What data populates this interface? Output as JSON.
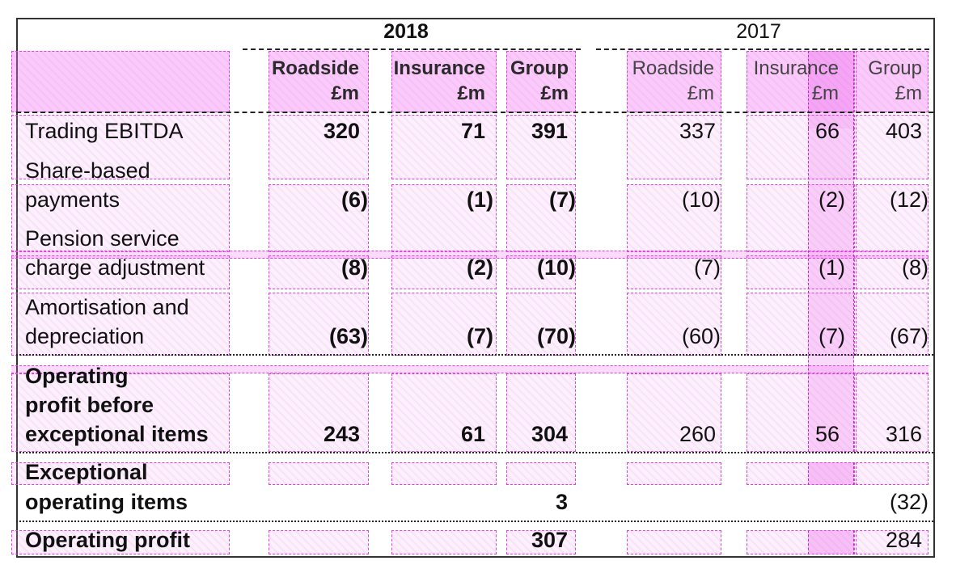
{
  "table": {
    "year_current": "2018",
    "year_prior": "2017",
    "columns": [
      {
        "line1": "Roadside",
        "line2": "£m"
      },
      {
        "line1": "Insurance",
        "line2": "£m"
      },
      {
        "line1": "Group",
        "line2": "£m"
      },
      {
        "line1": "Roadside",
        "line2": "£m"
      },
      {
        "line1": "Insurance",
        "line2": "£m"
      },
      {
        "line1": "Group",
        "line2": "£m"
      }
    ],
    "rows": [
      {
        "label_lines": [
          "Trading EBITDA"
        ],
        "values": [
          "320",
          "71",
          "391",
          "337",
          "66",
          "403"
        ]
      },
      {
        "label_lines": [
          "Share-based",
          "payments"
        ],
        "values": [
          "(6)",
          "(1)",
          "(7)",
          "(10)",
          "(2)",
          "(12)"
        ]
      },
      {
        "label_lines": [
          "Pension service",
          "charge adjustment"
        ],
        "values": [
          "(8)",
          "(2)",
          "(10)",
          "(7)",
          "(1)",
          "(8)"
        ]
      },
      {
        "label_lines": [
          "Amortisation and",
          "depreciation"
        ],
        "values": [
          "(63)",
          "(7)",
          "(70)",
          "(60)",
          "(7)",
          "(67)"
        ]
      },
      {
        "label_lines": [
          "Operating",
          "profit before",
          "exceptional items"
        ],
        "values": [
          "243",
          "61",
          "304",
          "260",
          "56",
          "316"
        ]
      },
      {
        "label_lines": [
          "Exceptional",
          "operating items"
        ],
        "values": [
          "",
          "",
          "3",
          "",
          "",
          "(32)"
        ]
      },
      {
        "label_lines": [
          "Operating profit"
        ],
        "values": [
          "",
          "",
          "307",
          "",
          "",
          "284"
        ]
      }
    ]
  }
}
